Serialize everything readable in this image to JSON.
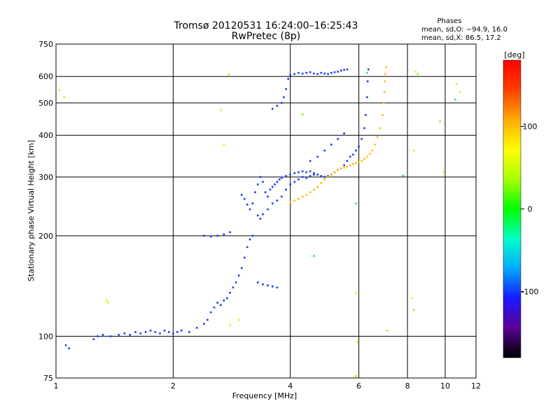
{
  "chart_data": {
    "type": "scatter",
    "title": "Tromsø 20120531 16:24:00–16:25:43",
    "subtitle": "RwPretec (8p)",
    "xlabel": "Frequency [MHz]",
    "ylabel": "Stationary phase Virtual Height [km]",
    "xscale": "log",
    "yscale": "log",
    "xlim": [
      1,
      12
    ],
    "ylim": [
      75,
      750
    ],
    "xticks": [
      1,
      2,
      4,
      6,
      8,
      10,
      12
    ],
    "xgrid": [
      2,
      4,
      6,
      8,
      10
    ],
    "yticks": [
      75,
      100,
      200,
      300,
      400,
      500,
      600,
      750
    ],
    "ygrid": [
      100,
      200,
      300,
      400,
      500,
      600
    ],
    "grid": true,
    "stats": {
      "title": "Phases",
      "line1": "mean, sd,O: −94.9, 16.0",
      "line2": "mean, sd,X:  86.5, 17.2"
    },
    "colorbar": {
      "label": "[deg]",
      "min": -180,
      "max": 180,
      "ticks": [
        100,
        0,
        -100
      ],
      "colormap": "rainbow",
      "colors": [
        "#000000",
        "#5a0094",
        "#1a1aff",
        "#00aaff",
        "#00ffc8",
        "#00ff00",
        "#aaff00",
        "#ffff00",
        "#ffaa00",
        "#ff4000",
        "#ff0000"
      ],
      "placement": "right"
    },
    "series": [
      {
        "phase": -100,
        "points": [
          [
            1.06,
            94
          ],
          [
            1.08,
            92
          ],
          [
            1.25,
            98
          ],
          [
            1.28,
            100
          ],
          [
            1.32,
            101
          ],
          [
            1.38,
            100
          ],
          [
            1.45,
            101
          ],
          [
            1.5,
            102
          ],
          [
            1.55,
            101
          ],
          [
            1.6,
            103
          ],
          [
            1.65,
            102
          ],
          [
            1.7,
            103
          ],
          [
            1.75,
            104
          ],
          [
            1.8,
            103
          ],
          [
            1.85,
            102
          ],
          [
            1.9,
            104
          ],
          [
            1.95,
            103
          ],
          [
            2.0,
            102
          ],
          [
            2.05,
            103
          ],
          [
            2.1,
            104
          ],
          [
            2.2,
            103
          ],
          [
            2.3,
            106
          ],
          [
            2.4,
            109
          ],
          [
            2.45,
            112
          ],
          [
            2.5,
            118
          ],
          [
            2.55,
            122
          ],
          [
            2.6,
            126
          ],
          [
            2.65,
            124
          ],
          [
            2.7,
            128
          ],
          [
            2.75,
            130
          ],
          [
            2.8,
            135
          ],
          [
            2.85,
            140
          ],
          [
            2.9,
            145
          ],
          [
            2.95,
            152
          ],
          [
            3.0,
            160
          ],
          [
            3.05,
            172
          ],
          [
            3.1,
            185
          ],
          [
            3.15,
            195
          ],
          [
            3.2,
            200
          ],
          [
            3.3,
            145
          ],
          [
            3.4,
            143
          ],
          [
            3.5,
            142
          ],
          [
            3.6,
            141
          ],
          [
            3.7,
            140
          ],
          [
            2.4,
            200
          ],
          [
            2.5,
            199
          ],
          [
            2.6,
            200
          ],
          [
            2.7,
            202
          ],
          [
            2.8,
            205
          ],
          [
            3.0,
            265
          ],
          [
            3.05,
            258
          ],
          [
            3.1,
            248
          ],
          [
            3.15,
            240
          ],
          [
            3.2,
            250
          ],
          [
            3.25,
            270
          ],
          [
            3.3,
            285
          ],
          [
            3.35,
            300
          ],
          [
            3.4,
            290
          ],
          [
            3.45,
            270
          ],
          [
            3.5,
            262
          ],
          [
            3.55,
            275
          ],
          [
            3.6,
            280
          ],
          [
            3.65,
            285
          ],
          [
            3.7,
            290
          ],
          [
            3.75,
            295
          ],
          [
            3.8,
            298
          ],
          [
            3.9,
            302
          ],
          [
            4.0,
            305
          ],
          [
            4.1,
            308
          ],
          [
            4.2,
            310
          ],
          [
            4.3,
            312
          ],
          [
            4.4,
            310
          ],
          [
            4.5,
            312
          ],
          [
            4.6,
            308
          ],
          [
            4.7,
            305
          ],
          [
            4.8,
            302
          ],
          [
            4.9,
            300
          ],
          [
            5.0,
            302
          ],
          [
            5.1,
            305
          ],
          [
            5.2,
            310
          ],
          [
            5.3,
            315
          ],
          [
            5.4,
            318
          ],
          [
            5.5,
            325
          ],
          [
            5.6,
            335
          ],
          [
            5.7,
            345
          ],
          [
            5.8,
            350
          ],
          [
            5.9,
            360
          ],
          [
            6.0,
            370
          ],
          [
            6.1,
            390
          ],
          [
            6.2,
            420
          ],
          [
            6.25,
            460
          ],
          [
            6.3,
            520
          ],
          [
            6.32,
            580
          ],
          [
            6.35,
            630
          ],
          [
            3.3,
            230
          ],
          [
            3.35,
            225
          ],
          [
            3.4,
            232
          ],
          [
            3.5,
            240
          ],
          [
            3.6,
            250
          ],
          [
            3.7,
            255
          ],
          [
            3.8,
            262
          ],
          [
            3.9,
            275
          ],
          [
            4.0,
            285
          ],
          [
            4.1,
            290
          ],
          [
            4.2,
            295
          ],
          [
            4.3,
            300
          ],
          [
            4.4,
            298
          ],
          [
            4.5,
            302
          ],
          [
            4.6,
            305
          ],
          [
            3.6,
            480
          ],
          [
            3.7,
            490
          ],
          [
            3.8,
            500
          ],
          [
            3.85,
            520
          ],
          [
            3.9,
            550
          ],
          [
            3.95,
            590
          ],
          [
            4.0,
            605
          ],
          [
            4.1,
            610
          ],
          [
            4.2,
            615
          ],
          [
            4.3,
            612
          ],
          [
            4.4,
            615
          ],
          [
            4.5,
            618
          ],
          [
            4.6,
            612
          ],
          [
            4.7,
            610
          ],
          [
            4.8,
            615
          ],
          [
            4.9,
            612
          ],
          [
            5.0,
            610
          ],
          [
            5.1,
            615
          ],
          [
            5.2,
            618
          ],
          [
            5.3,
            620
          ],
          [
            5.4,
            625
          ],
          [
            5.5,
            628
          ],
          [
            5.6,
            630
          ],
          [
            4.5,
            335
          ],
          [
            4.7,
            345
          ],
          [
            4.9,
            360
          ],
          [
            5.1,
            375
          ],
          [
            5.3,
            390
          ],
          [
            5.5,
            405
          ]
        ]
      },
      {
        "phase": 100,
        "points": [
          [
            4.0,
            252
          ],
          [
            4.1,
            255
          ],
          [
            4.2,
            258
          ],
          [
            4.3,
            262
          ],
          [
            4.4,
            265
          ],
          [
            4.5,
            270
          ],
          [
            4.6,
            275
          ],
          [
            4.7,
            280
          ],
          [
            4.8,
            288
          ],
          [
            4.9,
            295
          ],
          [
            5.0,
            300
          ],
          [
            5.1,
            305
          ],
          [
            5.2,
            310
          ],
          [
            5.3,
            315
          ],
          [
            5.4,
            318
          ],
          [
            5.5,
            320
          ],
          [
            5.6,
            322
          ],
          [
            5.7,
            325
          ],
          [
            5.8,
            328
          ],
          [
            5.9,
            330
          ],
          [
            6.0,
            332
          ],
          [
            6.1,
            335
          ],
          [
            6.2,
            340
          ],
          [
            6.3,
            345
          ],
          [
            6.4,
            352
          ],
          [
            6.5,
            360
          ],
          [
            6.6,
            375
          ],
          [
            6.7,
            395
          ],
          [
            6.8,
            420
          ],
          [
            6.9,
            460
          ],
          [
            6.95,
            500
          ],
          [
            6.98,
            540
          ],
          [
            7.0,
            580
          ],
          [
            7.02,
            610
          ],
          [
            7.05,
            640
          ]
        ]
      },
      {
        "phase": 50,
        "points": [
          [
            1.35,
            128
          ],
          [
            1.36,
            126
          ],
          [
            2.65,
            475
          ],
          [
            2.7,
            375
          ],
          [
            2.8,
            108
          ],
          [
            2.95,
            112
          ],
          [
            5.9,
            135
          ],
          [
            5.95,
            96
          ],
          [
            8.2,
            130
          ],
          [
            8.3,
            360
          ],
          [
            8.4,
            620
          ],
          [
            9.9,
            310
          ],
          [
            10.7,
            570
          ],
          [
            10.9,
            540
          ],
          [
            1.02,
            545
          ],
          [
            1.05,
            520
          ]
        ]
      },
      {
        "phase": 30,
        "points": [
          [
            8.3,
            120
          ],
          [
            8.5,
            610
          ],
          [
            9.7,
            440
          ],
          [
            7.1,
            104
          ],
          [
            2.78,
            608
          ],
          [
            4.3,
            462
          ],
          [
            5.9,
            76
          ]
        ]
      },
      {
        "phase": -20,
        "points": [
          [
            4.6,
            174
          ],
          [
            5.9,
            250
          ],
          [
            7.8,
            303
          ],
          [
            6.3,
            615
          ],
          [
            10.6,
            512
          ]
        ]
      }
    ]
  }
}
